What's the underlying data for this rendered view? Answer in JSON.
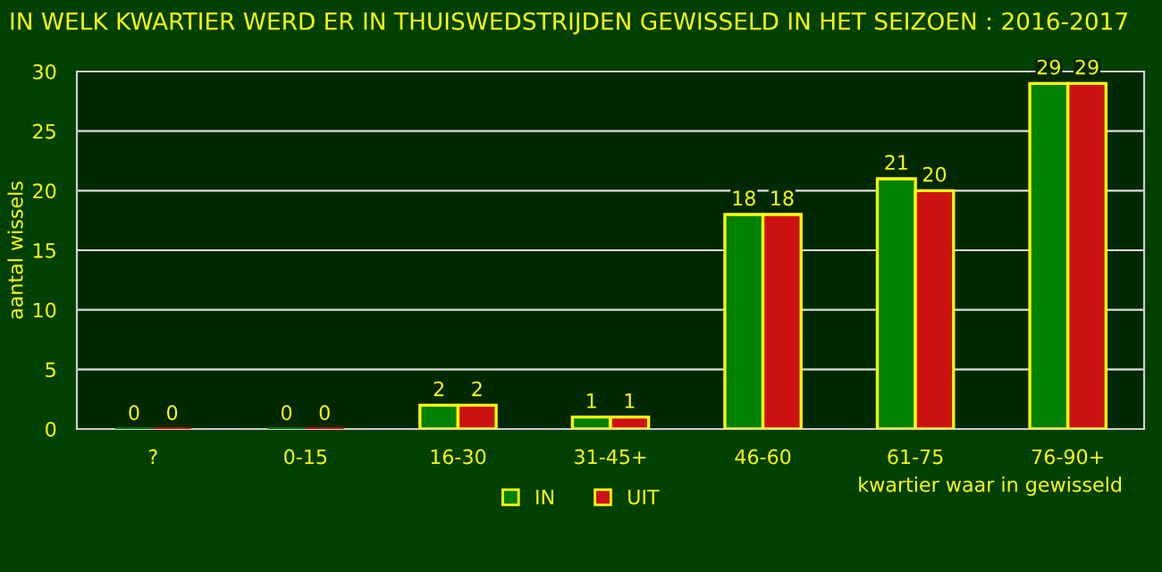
{
  "chart_data": {
    "type": "bar",
    "title": "IN WELK KWARTIER WERD ER IN THUISWEDSTRIJDEN GEWISSELD IN HET SEIZOEN : 2016-2017",
    "xlabel": "kwartier waar in gewisseld",
    "ylabel": "aantal wissels",
    "categories": [
      "?",
      "0-15",
      "16-30",
      "31-45+",
      "46-60",
      "61-75",
      "76-90+"
    ],
    "series": [
      {
        "name": "IN",
        "color": "#008000",
        "values": [
          0,
          0,
          2,
          1,
          18,
          21,
          29
        ]
      },
      {
        "name": "UIT",
        "color": "#cc1111",
        "values": [
          0,
          0,
          2,
          1,
          18,
          20,
          29
        ]
      }
    ],
    "ylim": [
      0,
      30
    ],
    "yticks": [
      0,
      5,
      10,
      15,
      20,
      25,
      30
    ],
    "grid": "y",
    "legend": "bottom",
    "data_labels": true
  }
}
